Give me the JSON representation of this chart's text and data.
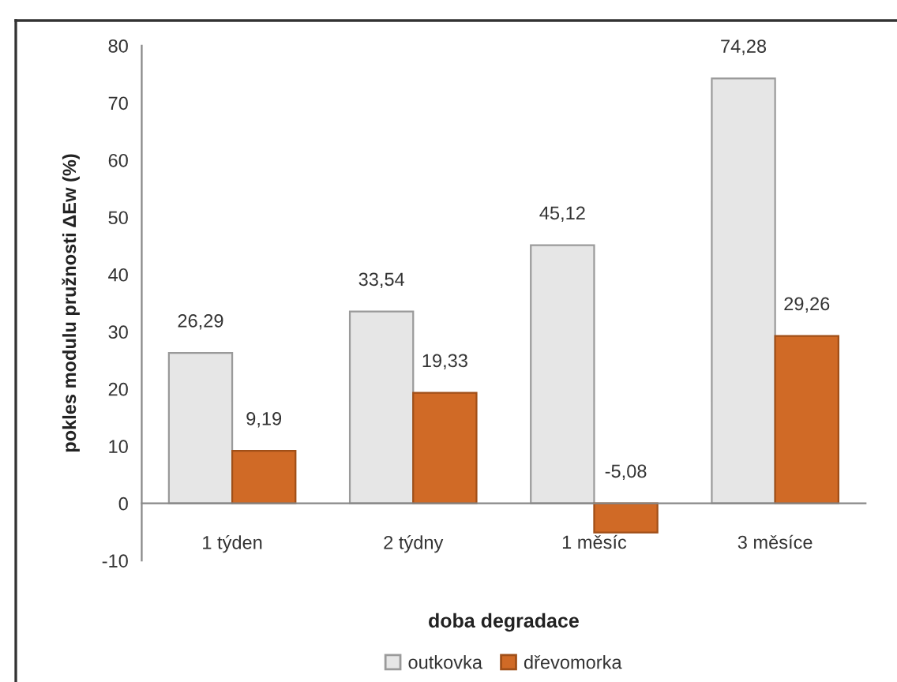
{
  "chart_data": {
    "type": "bar",
    "xlabel": "doba degradace",
    "ylabel": "pokles modulu pružnosti ΔEw (%)",
    "categories": [
      "1 týden",
      "2 týdny",
      "1 měsíc",
      "3 měsíce"
    ],
    "series": [
      {
        "name": "outkovka",
        "color": "#e6e6e6",
        "values": [
          26.29,
          33.54,
          45.12,
          74.28
        ],
        "value_labels": [
          "26,29",
          "33,54",
          "45,12",
          "74,28"
        ]
      },
      {
        "name": "dřevomorka",
        "color": "#d06a26",
        "values": [
          9.19,
          19.33,
          -5.08,
          29.26
        ],
        "value_labels": [
          "9,19",
          "19,33",
          "-5,08",
          "29,26"
        ]
      }
    ],
    "ylim": [
      -10,
      80
    ],
    "yticks": [
      -10,
      0,
      10,
      20,
      30,
      40,
      50,
      60,
      70,
      80
    ],
    "grid": false,
    "legend": "bottom"
  }
}
